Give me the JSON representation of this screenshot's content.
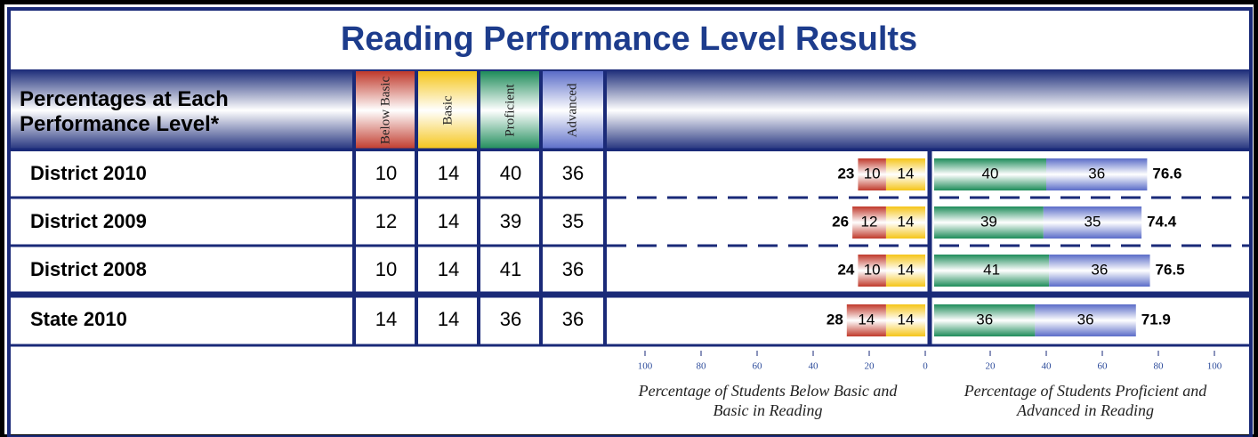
{
  "chart_data": {
    "type": "diverging_bar",
    "title": "Reading Performance Level Results",
    "row_header": "Percentages at Each Performance Level*",
    "categories": [
      "District 2010",
      "District 2009",
      "District 2008",
      "State 2010"
    ],
    "series": [
      {
        "name": "Below Basic",
        "color": "#c0392b",
        "side": "left",
        "values": [
          10,
          12,
          10,
          14
        ]
      },
      {
        "name": "Basic",
        "color": "#f5c518",
        "side": "left",
        "values": [
          14,
          14,
          14,
          14
        ]
      },
      {
        "name": "Proficient",
        "color": "#1e8c5a",
        "side": "right",
        "values": [
          40,
          39,
          41,
          36
        ]
      },
      {
        "name": "Advanced",
        "color": "#5a6cc8",
        "side": "right",
        "values": [
          36,
          35,
          36,
          36
        ]
      }
    ],
    "left_totals": [
      23,
      26,
      24,
      28
    ],
    "right_totals": [
      76.6,
      74.4,
      76.5,
      71.9
    ],
    "xlim_left": [
      0,
      100
    ],
    "xticks_left": [
      100,
      80,
      60,
      40,
      20,
      0
    ],
    "xlim_right": [
      0,
      100
    ],
    "xticks_right": [
      20,
      40,
      60,
      80,
      100
    ],
    "xlabel_left": "Percentage of Students Below Basic and Basic in Reading",
    "xlabel_right": "Percentage of Students Proficient and Advanced in Reading"
  }
}
